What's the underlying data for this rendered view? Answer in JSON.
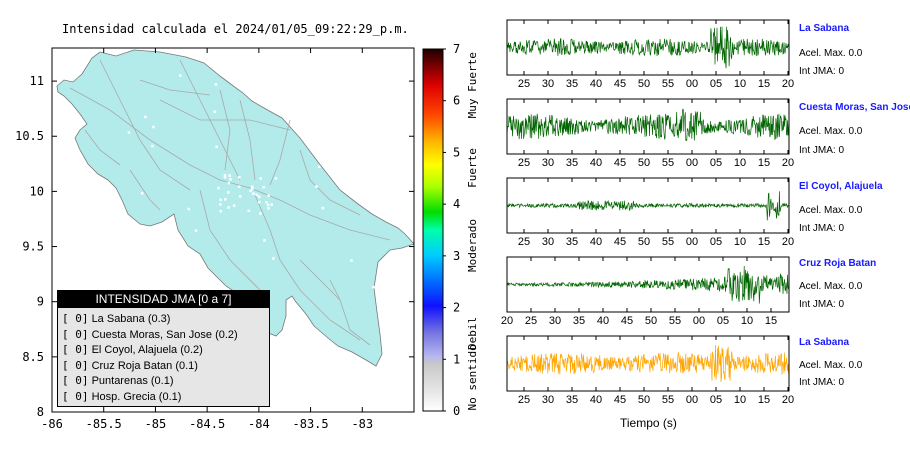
{
  "title": "Intensidad calculada el 2024/01/05_09:22:29_p.m.",
  "map": {
    "x_ticks": [
      "-86",
      "-85.5",
      "-85",
      "-84.5",
      "-84",
      "-83.5",
      "-83"
    ],
    "y_ticks": [
      "11",
      "10.5",
      "10",
      "9.5",
      "9",
      "8.5",
      "8"
    ],
    "land_color": "#b3ebeb",
    "road_color": "#a8a8a8"
  },
  "legend": {
    "header": "INTENSIDAD JMA [0 a 7]",
    "rows": [
      {
        "level": "[ 0]",
        "station": "La Sabana (0.3)"
      },
      {
        "level": "[ 0]",
        "station": "Cuesta Moras, San Jose (0.2)"
      },
      {
        "level": "[ 0]",
        "station": "El Coyol, Alajuela (0.2)"
      },
      {
        "level": "[ 0]",
        "station": "Cruz Roja Batan (0.1)"
      },
      {
        "level": "[ 0]",
        "station": "Puntarenas (0.1)"
      },
      {
        "level": "[ 0]",
        "station": "Hosp. Grecia (0.1)"
      }
    ]
  },
  "colorbar": {
    "ticks": [
      "0",
      "1",
      "2",
      "3",
      "4",
      "5",
      "6",
      "7"
    ],
    "categories": [
      "No sentido",
      "Debil",
      "Moderado",
      "Fuerte",
      "Muy Fuerte"
    ]
  },
  "x_axis_label": "Tiempo (s)",
  "panels": [
    {
      "name": "La Sabana",
      "accel": "Acel. Max. 0.0",
      "jma": "Int JMA: 0",
      "ticks": [
        "25",
        "30",
        "35",
        "40",
        "45",
        "50",
        "55",
        "00",
        "05",
        "10",
        "15",
        "20"
      ],
      "color": "#006400"
    },
    {
      "name": "Cuesta Moras, San Jose",
      "accel": "Acel. Max. 0.0",
      "jma": "Int JMA: 0",
      "ticks": [
        "25",
        "30",
        "35",
        "40",
        "45",
        "50",
        "55",
        "00",
        "05",
        "10",
        "15",
        "20"
      ],
      "color": "#006400"
    },
    {
      "name": "El Coyol, Alajuela",
      "accel": "Acel. Max. 0.0",
      "jma": "Int JMA: 0",
      "ticks": [
        "25",
        "30",
        "35",
        "40",
        "45",
        "50",
        "55",
        "00",
        "05",
        "10",
        "15",
        "20"
      ],
      "color": "#006400"
    },
    {
      "name": "Cruz Roja Batan",
      "accel": "Acel. Max. 0.0",
      "jma": "Int JMA: 0",
      "ticks": [
        "20",
        "25",
        "30",
        "35",
        "40",
        "45",
        "50",
        "55",
        "00",
        "05",
        "10",
        "15"
      ],
      "color": "#006400"
    },
    {
      "name": "La Sabana",
      "accel": "Acel. Max. 0.0",
      "jma": "Int JMA: 0",
      "ticks": [
        "25",
        "30",
        "35",
        "40",
        "45",
        "50",
        "55",
        "00",
        "05",
        "10",
        "15",
        "20"
      ],
      "color": "#ffa500"
    }
  ],
  "chart_data": [
    {
      "type": "heatmap",
      "title": "Intensidad calculada el 2024/01/05_09:22:29_p.m.",
      "xlim": [
        -86,
        -82.5
      ],
      "ylim": [
        8,
        11.3
      ],
      "x_ticks": [
        -86,
        -85.5,
        -85,
        -84.5,
        -84,
        -83.5,
        -83
      ],
      "y_ticks": [
        8,
        8.5,
        9,
        9.5,
        10,
        10.5,
        11
      ],
      "colorbar_range": [
        0,
        7
      ],
      "colorbar_labels": [
        "No sentido",
        "Debil",
        "Moderado",
        "Fuerte",
        "Muy Fuerte"
      ]
    },
    {
      "type": "line",
      "series": [
        {
          "name": "La Sabana",
          "max_accel": 0.0,
          "int_jma": 0
        },
        {
          "name": "Cuesta Moras, San Jose",
          "max_accel": 0.0,
          "int_jma": 0
        },
        {
          "name": "El Coyol, Alajuela",
          "max_accel": 0.0,
          "int_jma": 0
        },
        {
          "name": "Cruz Roja Batan",
          "max_accel": 0.0,
          "int_jma": 0
        },
        {
          "name": "La Sabana",
          "max_accel": 0.0,
          "int_jma": 0
        }
      ],
      "xlabel": "Tiempo (s)"
    }
  ]
}
